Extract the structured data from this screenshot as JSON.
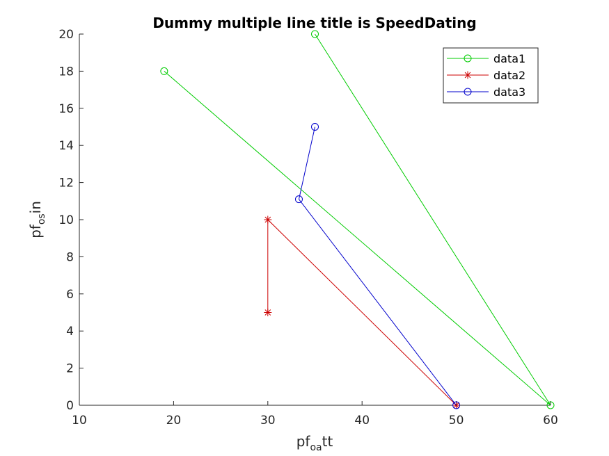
{
  "chart_data": {
    "type": "line",
    "title": "Dummy multiple line title is SpeedDating",
    "xlabel": {
      "base": "pf",
      "sub": "oa",
      "rest": "tt"
    },
    "ylabel": {
      "base": "pf",
      "sub": "os",
      "rest": "in"
    },
    "xlim": [
      10,
      60
    ],
    "ylim": [
      0,
      20
    ],
    "xticks": [
      10,
      20,
      30,
      40,
      50,
      60
    ],
    "yticks": [
      0,
      2,
      4,
      6,
      8,
      10,
      12,
      14,
      16,
      18,
      20
    ],
    "grid": false,
    "legend_position": "top-right",
    "series": [
      {
        "name": "data1",
        "color": "#00cc00",
        "marker": "circle",
        "points": [
          [
            19,
            18
          ],
          [
            60,
            0
          ],
          [
            35,
            20
          ]
        ]
      },
      {
        "name": "data2",
        "color": "#cc0000",
        "marker": "asterisk",
        "points": [
          [
            30,
            5
          ],
          [
            30,
            10
          ],
          [
            50,
            0
          ]
        ]
      },
      {
        "name": "data3",
        "color": "#0000cc",
        "marker": "circle",
        "points": [
          [
            50,
            0
          ],
          [
            33.3,
            11.1
          ],
          [
            35,
            15
          ]
        ]
      }
    ]
  }
}
